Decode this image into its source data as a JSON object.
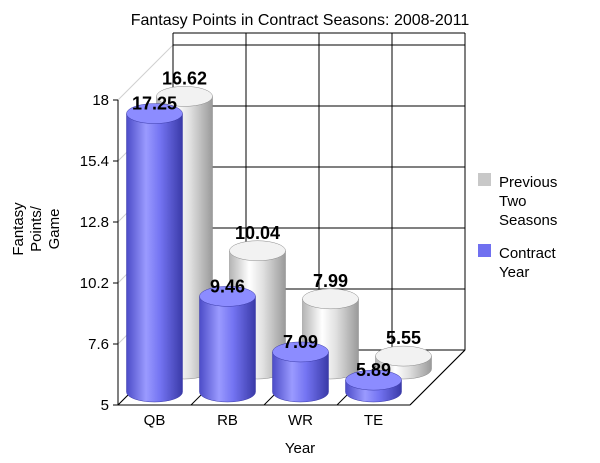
{
  "chart_data": {
    "type": "bar",
    "title": "Fantasy Points in Contract Seasons: 2008-2011",
    "xlabel": "Year",
    "ylabel_lines": [
      "Fantasy",
      "Points/",
      "Game"
    ],
    "categories": [
      "QB",
      "RB",
      "WR",
      "TE"
    ],
    "yticks": [
      "5",
      "7.6",
      "10.2",
      "12.8",
      "15.4",
      "18"
    ],
    "ylim": [
      5,
      18
    ],
    "series": [
      {
        "name": "Contract Year",
        "values": [
          17.25,
          9.46,
          7.09,
          5.89
        ],
        "labels": [
          "17.25",
          "9.46",
          "7.09",
          "5.89"
        ],
        "color": "#7070f0"
      },
      {
        "name": "Previous Two Seasons",
        "values": [
          16.62,
          10.04,
          7.99,
          5.55
        ],
        "labels": [
          "16.62",
          "10.04",
          "7.99",
          "5.55"
        ],
        "color": "#c8c8c8"
      }
    ],
    "legend": {
      "position": "right",
      "entries": [
        {
          "lines": [
            "Previous",
            "Two",
            "Seasons"
          ],
          "color": "#c8c8c8"
        },
        {
          "lines": [
            "Contract",
            "Year"
          ],
          "color": "#7070f0"
        }
      ]
    },
    "style": "3d-cylinder",
    "grid": true
  }
}
